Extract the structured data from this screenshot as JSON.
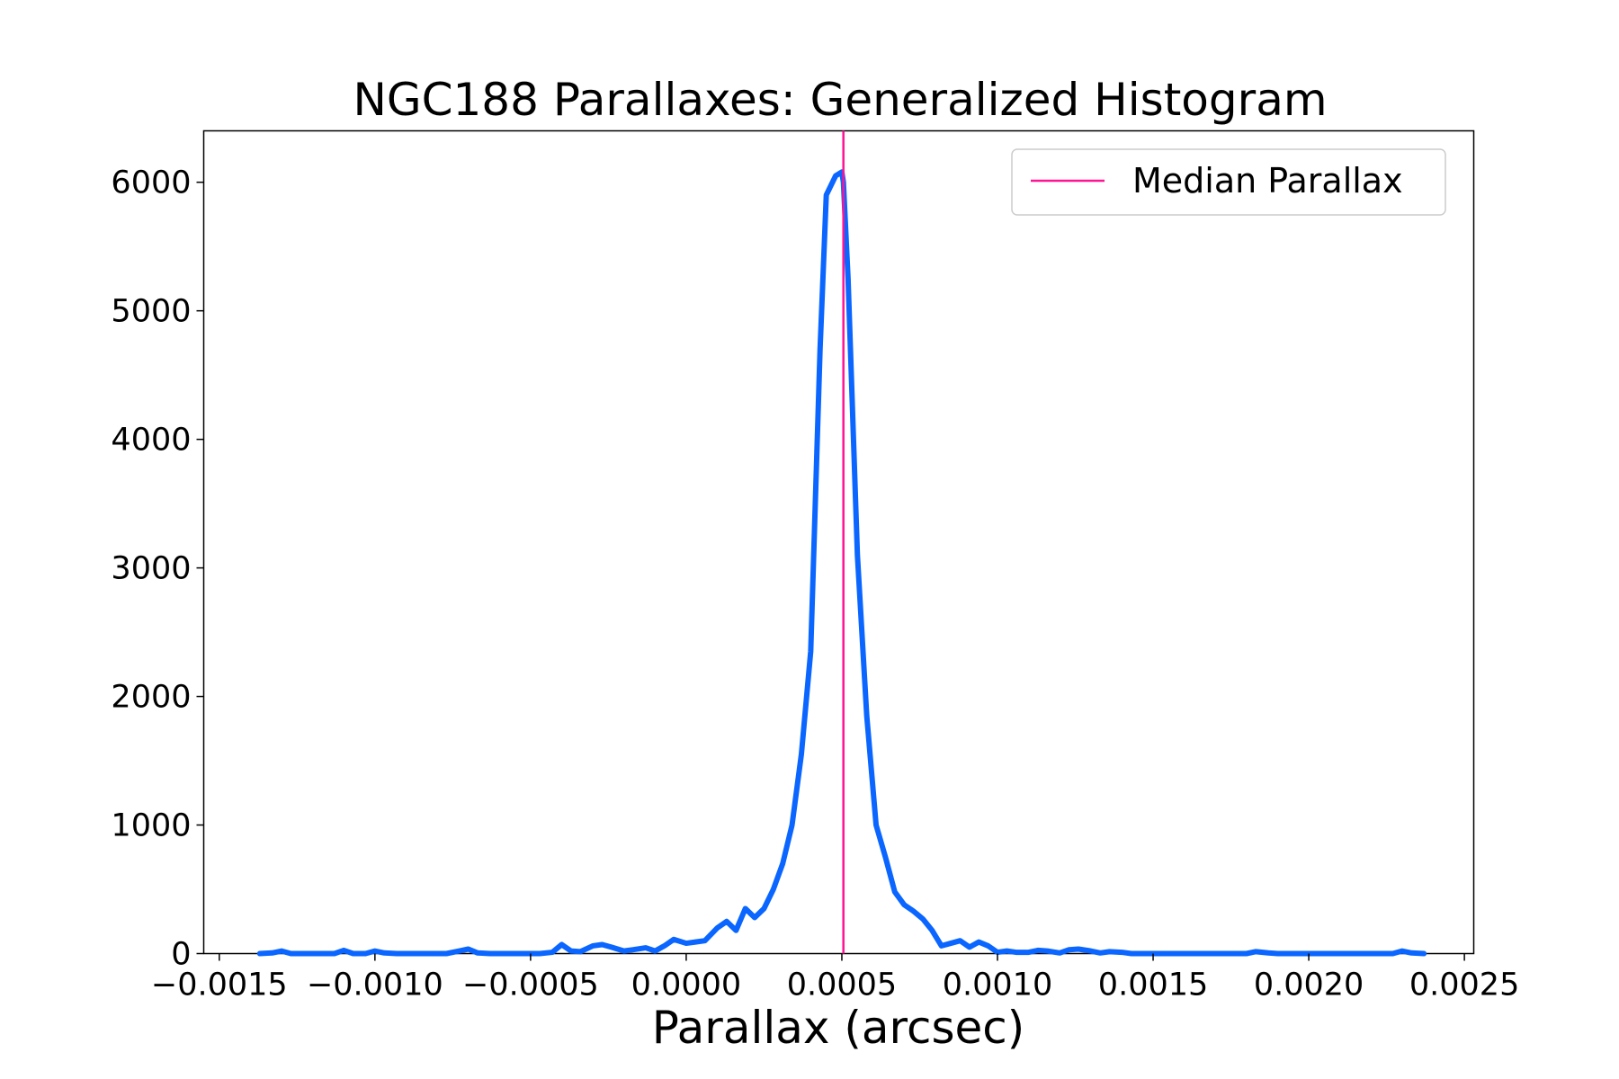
{
  "chart_data": {
    "type": "line",
    "title": "NGC188 Parallaxes: Generalized Histogram",
    "xlabel": "Parallax (arcsec)",
    "ylabel": "",
    "xlim": [
      -0.00155,
      0.00253
    ],
    "ylim": [
      0,
      6400
    ],
    "x_ticks": [
      -0.0015,
      -0.001,
      -0.0005,
      0.0,
      0.0005,
      0.001,
      0.0015,
      0.002,
      0.0025
    ],
    "x_tick_labels": [
      "−0.0015",
      "−0.0010",
      "−0.0005",
      "0.0000",
      "0.0005",
      "0.0010",
      "0.0015",
      "0.0020",
      "0.0025"
    ],
    "y_ticks": [
      0,
      1000,
      2000,
      3000,
      4000,
      5000,
      6000
    ],
    "y_tick_labels": [
      "0",
      "1000",
      "2000",
      "3000",
      "4000",
      "5000",
      "6000"
    ],
    "grid": false,
    "legend": {
      "position": "top-right",
      "entries": [
        {
          "label": "Median Parallax",
          "color": "#ff1493",
          "kind": "line"
        }
      ]
    },
    "vlines": [
      {
        "x": 0.000505,
        "color": "#ff1493",
        "legend_label": "Median Parallax"
      }
    ],
    "series": [
      {
        "color": "#0a66ff",
        "x": [
          -0.00137,
          -0.00133,
          -0.0013,
          -0.00127,
          -0.00124,
          -0.0012,
          -0.00117,
          -0.00113,
          -0.0011,
          -0.00107,
          -0.00103,
          -0.001,
          -0.00097,
          -0.00093,
          -0.0009,
          -0.00087,
          -0.00083,
          -0.0008,
          -0.00077,
          -0.00073,
          -0.0007,
          -0.00067,
          -0.00063,
          -0.0006,
          -0.00057,
          -0.00053,
          -0.0005,
          -0.00047,
          -0.00043,
          -0.0004,
          -0.00037,
          -0.00034,
          -0.0003,
          -0.00027,
          -0.00024,
          -0.0002,
          -0.00017,
          -0.00013,
          -0.0001,
          -7e-05,
          -4e-05,
          0.0,
          3e-05,
          6e-05,
          0.0001,
          0.00013,
          0.00016,
          0.00019,
          0.00022,
          0.00025,
          0.00028,
          0.00031,
          0.00034,
          0.00037,
          0.0004,
          0.00043,
          0.00045,
          0.00048,
          0.0005,
          0.000505,
          0.00052,
          0.00055,
          0.00058,
          0.00061,
          0.00064,
          0.00067,
          0.0007,
          0.00073,
          0.00076,
          0.00079,
          0.00082,
          0.00085,
          0.00088,
          0.00091,
          0.00094,
          0.00097,
          0.001,
          0.00103,
          0.00106,
          0.0011,
          0.00113,
          0.00116,
          0.0012,
          0.00123,
          0.00126,
          0.0013,
          0.00133,
          0.00136,
          0.0014,
          0.00143,
          0.00146,
          0.0015,
          0.0016,
          0.0017,
          0.0018,
          0.00183,
          0.00187,
          0.0019,
          0.002,
          0.0021,
          0.0022,
          0.00227,
          0.0023,
          0.00233,
          0.00237
        ],
        "y": [
          0,
          5,
          20,
          0,
          0,
          0,
          0,
          0,
          25,
          0,
          0,
          20,
          5,
          0,
          0,
          0,
          0,
          0,
          0,
          20,
          35,
          5,
          0,
          0,
          0,
          0,
          0,
          0,
          10,
          70,
          20,
          15,
          60,
          70,
          50,
          20,
          30,
          45,
          20,
          60,
          110,
          80,
          90,
          100,
          200,
          250,
          180,
          350,
          280,
          350,
          500,
          700,
          1000,
          1550,
          2350,
          4700,
          5900,
          6050,
          6080,
          6000,
          5250,
          3100,
          1850,
          1000,
          750,
          480,
          380,
          330,
          270,
          180,
          60,
          80,
          100,
          50,
          90,
          60,
          10,
          20,
          10,
          10,
          25,
          20,
          5,
          30,
          35,
          20,
          5,
          15,
          10,
          0,
          0,
          0,
          0,
          0,
          0,
          15,
          5,
          0,
          0,
          0,
          0,
          0,
          20,
          5,
          0
        ]
      }
    ]
  }
}
